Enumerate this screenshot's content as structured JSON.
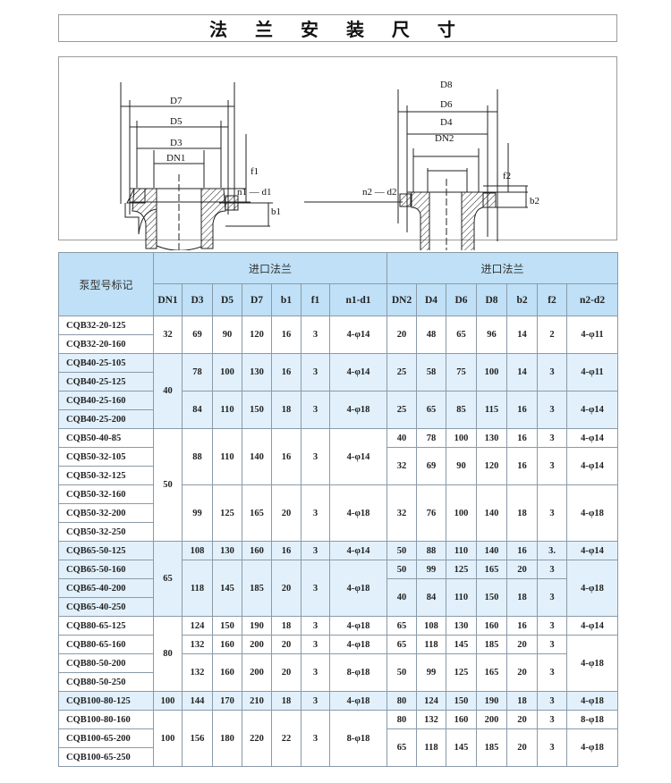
{
  "title": "法 兰 安 装 尺 寸",
  "diagram": {
    "left_labels": {
      "d7": "D7",
      "d5": "D5",
      "d3": "D3",
      "dn1": "DN1",
      "f1": "f1",
      "b1": "b1",
      "n1d1": "n1 — d1"
    },
    "right_labels": {
      "d8": "D8",
      "d6": "D6",
      "d4": "D4",
      "dn2": "DN2",
      "f2": "f2",
      "b2": "b2",
      "n2d2": "n2 — d2"
    }
  },
  "table": {
    "model_header": "泵型号标记",
    "inlet_group": "进口法兰",
    "outlet_group": "进口法兰",
    "inlet_columns": [
      "DN1",
      "D3",
      "D5",
      "D7",
      "b1",
      "f1",
      "n1-d1"
    ],
    "outlet_columns": [
      "DN2",
      "D4",
      "D6",
      "D8",
      "b2",
      "f2",
      "n2-d2"
    ],
    "rows": [
      [
        "CQB32-20-125",
        "32",
        "69",
        "90",
        "120",
        "16",
        "3",
        "4-φ14",
        "20",
        "48",
        "65",
        "96",
        "14",
        "2",
        "4-φ11"
      ],
      [
        "CQB32-20-160",
        null,
        null,
        null,
        null,
        null,
        null,
        null,
        null,
        null,
        null,
        null,
        null,
        null,
        null
      ],
      [
        "CQB40-25-105",
        "40",
        "78",
        "100",
        "130",
        "16",
        "3",
        "4-φ14",
        "25",
        "58",
        "75",
        "100",
        "14",
        "3",
        "4-φ11"
      ],
      [
        "CQB40-25-125",
        null,
        null,
        null,
        null,
        null,
        null,
        null,
        null,
        null,
        null,
        null,
        null,
        null,
        null
      ],
      [
        "CQB40-25-160",
        null,
        "84",
        "110",
        "150",
        "18",
        "3",
        "4-φ18",
        "25",
        "65",
        "85",
        "115",
        "16",
        "3",
        "4-φ14"
      ],
      [
        "CQB40-25-200",
        null,
        null,
        null,
        null,
        null,
        null,
        null,
        null,
        null,
        null,
        null,
        null,
        null,
        null
      ],
      [
        "CQB50-40-85",
        "50",
        "88",
        "110",
        "140",
        "16",
        "3",
        "4-φ14",
        "40",
        "78",
        "100",
        "130",
        "16",
        "3",
        "4-φ14"
      ],
      [
        "CQB50-32-105",
        null,
        null,
        null,
        null,
        null,
        null,
        null,
        "32",
        "69",
        "90",
        "120",
        "16",
        "3",
        "4-φ14"
      ],
      [
        "CQB50-32-125",
        null,
        null,
        null,
        null,
        null,
        null,
        null,
        null,
        null,
        null,
        null,
        null,
        null,
        null
      ],
      [
        "CQB50-32-160",
        null,
        "99",
        "125",
        "165",
        "20",
        "3",
        "4-φ18",
        "32",
        "76",
        "100",
        "140",
        "18",
        "3",
        "4-φ18"
      ],
      [
        "CQB50-32-200",
        null,
        null,
        null,
        null,
        null,
        null,
        null,
        null,
        null,
        null,
        null,
        null,
        null,
        null
      ],
      [
        "CQB50-32-250",
        null,
        null,
        null,
        null,
        null,
        null,
        null,
        null,
        null,
        null,
        null,
        null,
        null,
        null
      ],
      [
        "CQB65-50-125",
        "65",
        "108",
        "130",
        "160",
        "16",
        "3",
        "4-φ14",
        "50",
        "88",
        "110",
        "140",
        "16",
        "3.",
        "4-φ14"
      ],
      [
        "CQB65-50-160",
        null,
        "118",
        "145",
        "185",
        "20",
        "3",
        "4-φ18",
        "50",
        "99",
        "125",
        "165",
        "20",
        "3",
        "4-φ18"
      ],
      [
        "CQB65-40-200",
        null,
        null,
        null,
        null,
        null,
        null,
        null,
        "40",
        "84",
        "110",
        "150",
        "18",
        "3",
        null
      ],
      [
        "CQB65-40-250",
        null,
        null,
        null,
        null,
        null,
        null,
        null,
        null,
        null,
        null,
        null,
        null,
        null,
        null
      ],
      [
        "CQB80-65-125",
        "80",
        "124",
        "150",
        "190",
        "18",
        "3",
        "4-φ18",
        "65",
        "108",
        "130",
        "160",
        "16",
        "3",
        "4-φ14"
      ],
      [
        "CQB80-65-160",
        null,
        "132",
        "160",
        "200",
        "20",
        "3",
        "4-φ18",
        "65",
        "118",
        "145",
        "185",
        "20",
        "3",
        "4-φ18"
      ],
      [
        "CQB80-50-200",
        null,
        "132",
        "160",
        "200",
        "20",
        "3",
        "8-φ18",
        "50",
        "99",
        "125",
        "165",
        "20",
        "3",
        null
      ],
      [
        "CQB80-50-250",
        null,
        null,
        null,
        null,
        null,
        null,
        null,
        null,
        null,
        null,
        null,
        null,
        null,
        null
      ],
      [
        "CQB100-80-125",
        "100",
        "144",
        "170",
        "210",
        "18",
        "3",
        "4-φ18",
        "80",
        "124",
        "150",
        "190",
        "18",
        "3",
        "4-φ18"
      ],
      [
        "CQB100-80-160",
        "100",
        "156",
        "180",
        "220",
        "22",
        "3",
        "8-φ18",
        "80",
        "132",
        "160",
        "200",
        "20",
        "3",
        "8-φ18"
      ],
      [
        "CQB100-65-200",
        null,
        null,
        null,
        null,
        null,
        null,
        null,
        "65",
        "118",
        "145",
        "185",
        "20",
        "3",
        "4-φ18"
      ],
      [
        "CQB100-65-250",
        null,
        null,
        null,
        null,
        null,
        null,
        null,
        null,
        null,
        null,
        null,
        null,
        null,
        null
      ]
    ]
  }
}
